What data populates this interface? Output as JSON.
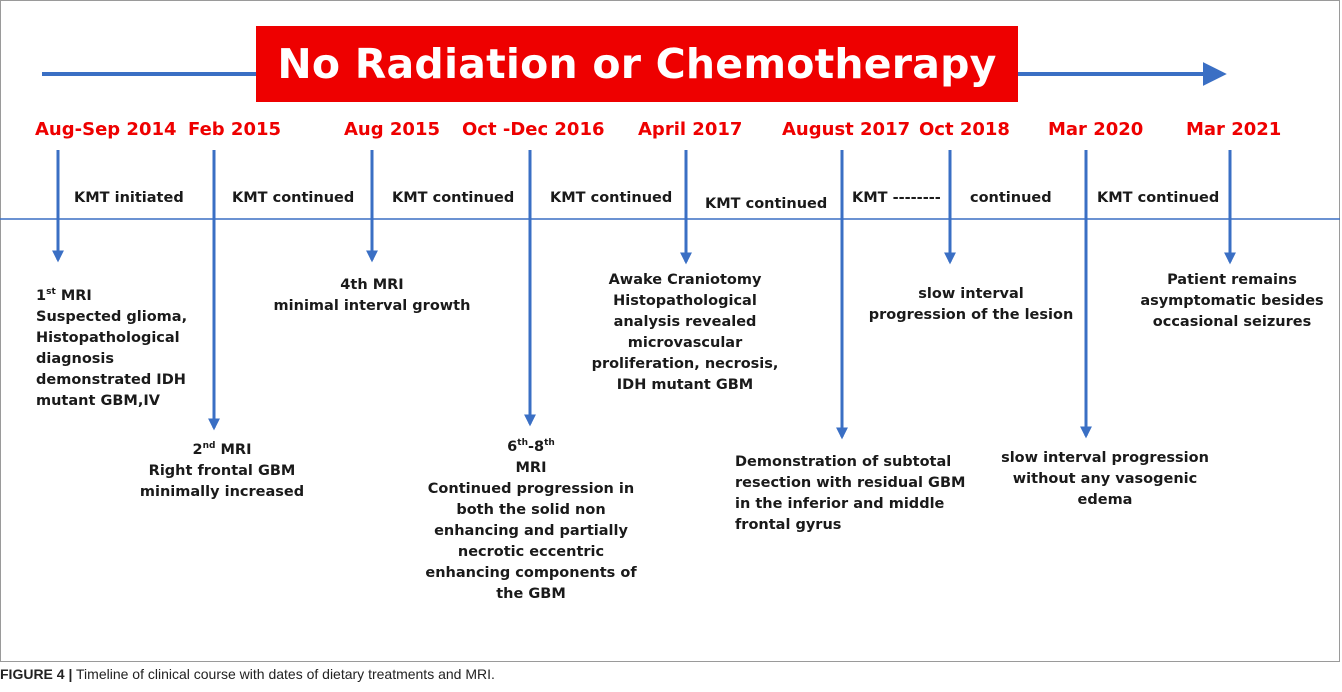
{
  "banner": "No Radiation or Chemotherapy",
  "dates": [
    "Aug-Sep 2014",
    "Feb 2015",
    "Aug 2015",
    "Oct -Dec 2016",
    "April 2017",
    "August 2017",
    "Oct  2018",
    "Mar 2020",
    "Mar 2021"
  ],
  "segments": [
    "KMT initiated",
    "KMT continued",
    "KMT continued",
    "KMT continued",
    "KMT continued",
    "KMT --------",
    "continued",
    "KMT continued"
  ],
  "events": {
    "e1": {
      "mri_num": "1",
      "mri_sup": "st",
      "mri_word": " MRI",
      "lines": [
        "Suspected glioma,",
        "Histopathological",
        "diagnosis",
        "demonstrated  IDH",
        "mutant GBM,IV"
      ]
    },
    "e2": {
      "mri_num": "2",
      "mri_sup": "nd",
      "mri_word": " MRI",
      "lines": [
        "Right frontal GBM",
        "minimally increased"
      ]
    },
    "e3": {
      "lines": [
        "4th  MRI",
        "minimal interval growth"
      ]
    },
    "e4": {
      "num_a": "6",
      "sup_a": "th",
      "dash": "-8",
      "sup_b": "th",
      "lines": [
        "MRI",
        "Continued progression in",
        "both the solid non",
        "enhancing and partially",
        "necrotic eccentric",
        "enhancing components of",
        "the GBM"
      ]
    },
    "e5": {
      "lines": [
        "Awake Craniotomy",
        "Histopathological",
        "analysis revealed",
        "microvascular",
        "proliferation, necrosis,",
        "IDH mutant GBM"
      ]
    },
    "e6": {
      "lines": [
        "Demonstration of subtotal",
        "resection with residual GBM",
        "in the inferior and middle",
        "frontal gyrus"
      ]
    },
    "e7": {
      "lines": [
        "slow interval",
        "progression of the lesion"
      ]
    },
    "e8": {
      "lines": [
        "slow interval progression",
        "without any vasogenic",
        "edema"
      ]
    },
    "e9": {
      "lines": [
        "Patient remains",
        "asymptomatic besides",
        "occasional seizures"
      ]
    }
  },
  "caption": {
    "label": "FIGURE 4 |",
    "text": " Timeline of clinical course with dates of dietary treatments and MRI."
  },
  "colors": {
    "arrow": "#3a6fc4",
    "banner": "#ee0000",
    "dates": "#ee0000"
  }
}
